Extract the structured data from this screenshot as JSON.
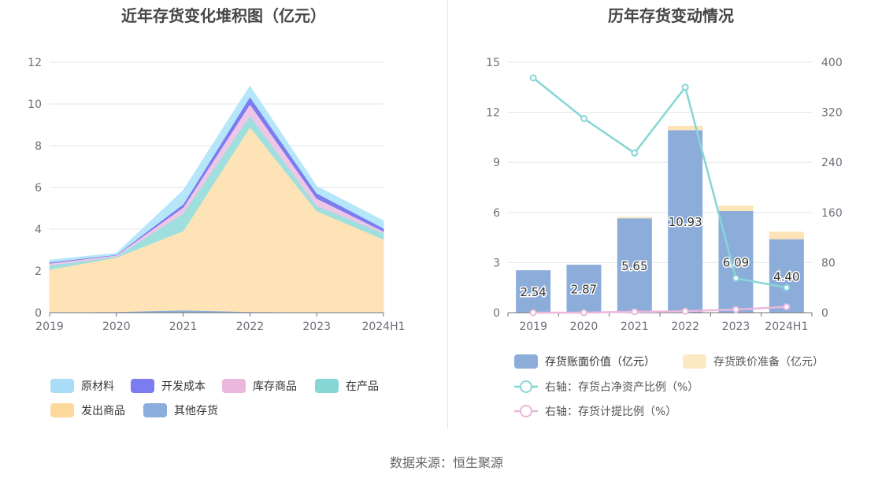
{
  "left_chart": {
    "title": "近年存货变化堆积图（亿元）",
    "chart_data": {
      "type": "area",
      "stacked": true,
      "categories": [
        "2019",
        "2020",
        "2021",
        "2022",
        "2023",
        "2024H1"
      ],
      "ylim": [
        0,
        12
      ],
      "yticks": [
        0,
        2,
        4,
        6,
        8,
        10,
        12
      ],
      "series": [
        {
          "name": "其他存货",
          "color": "#8caedc",
          "values": [
            0.02,
            0.05,
            0.12,
            0.05,
            0.03,
            0.02
          ]
        },
        {
          "name": "发出商品",
          "color": "#fde3b6",
          "values": [
            2.05,
            2.6,
            3.8,
            8.85,
            4.85,
            3.5
          ]
        },
        {
          "name": "在产品",
          "color": "#9fe0df",
          "values": [
            0.2,
            0.05,
            0.85,
            0.55,
            0.25,
            0.3
          ]
        },
        {
          "name": "库存商品",
          "color": "#eec6e6",
          "values": [
            0.1,
            0.06,
            0.28,
            0.55,
            0.35,
            0.08
          ]
        },
        {
          "name": "开发成本",
          "color": "#7b7cf0",
          "values": [
            0.05,
            0.02,
            0.15,
            0.35,
            0.25,
            0.15
          ]
        },
        {
          "name": "原材料",
          "color": "#b6e6fa",
          "values": [
            0.1,
            0.06,
            0.65,
            0.5,
            0.32,
            0.35
          ]
        }
      ],
      "legend_order": [
        "原材料",
        "开发成本",
        "库存商品",
        "在产品",
        "发出商品",
        "其他存货"
      ],
      "legend_colors": {
        "原材料": "#a9ddf6",
        "开发成本": "#7b7cf0",
        "库存商品": "#eab8dc",
        "在产品": "#86d6d6",
        "发出商品": "#fcd99a",
        "其他存货": "#8caedc"
      },
      "legend_position": "bottom"
    }
  },
  "right_chart": {
    "title": "历年存货变动情况",
    "chart_data": {
      "type": "bar",
      "stacked": true,
      "categories": [
        "2019",
        "2020",
        "2021",
        "2022",
        "2023",
        "2024H1"
      ],
      "ylim": [
        0,
        15
      ],
      "yticks": [
        0,
        3,
        6,
        9,
        12,
        15
      ],
      "y2lim": [
        0,
        400
      ],
      "y2ticks": [
        0,
        80,
        160,
        240,
        320,
        400
      ],
      "series": [
        {
          "name": "存货账面价值（亿元）",
          "color": "#8cadda",
          "values": [
            2.54,
            2.87,
            5.65,
            10.93,
            6.09,
            4.4
          ],
          "labels": [
            "2.54",
            "2.87",
            "5.65",
            "10.93",
            "6.09",
            "4.40"
          ]
        },
        {
          "name": "存货跌价准备（亿元）",
          "color": "#fde3b6",
          "values": [
            0.0,
            0.0,
            0.08,
            0.25,
            0.32,
            0.45
          ]
        }
      ],
      "line_series": [
        {
          "name": "右轴：存货占净资产比例（%）",
          "color": "#86d6d6",
          "axis": "right",
          "values": [
            375,
            310,
            255,
            360,
            55,
            40
          ]
        },
        {
          "name": "右轴：存货计提比例（%）",
          "color": "#eab8dc",
          "axis": "right",
          "values": [
            0,
            0,
            1.4,
            2.3,
            5.0,
            9.3
          ]
        }
      ],
      "legend_position": "bottom"
    }
  },
  "footer": {
    "source": "数据来源：恒生聚源"
  }
}
